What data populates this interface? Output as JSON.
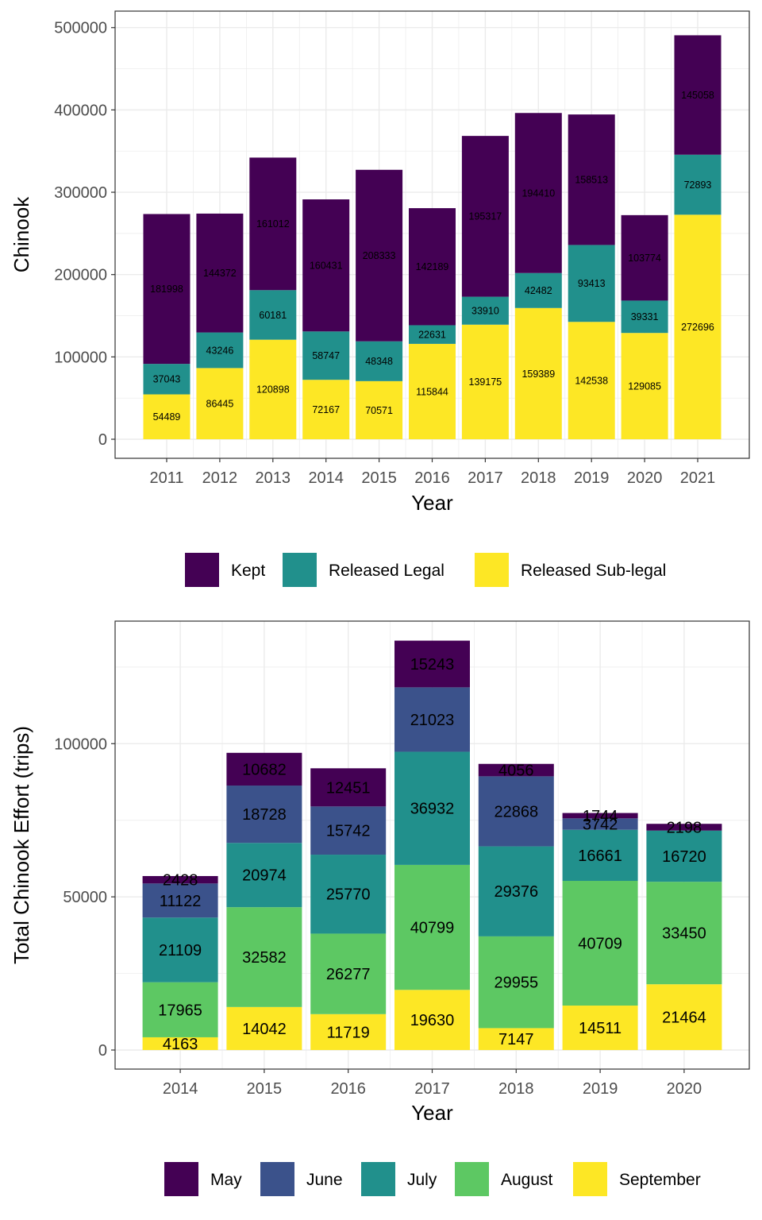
{
  "chart_data": [
    {
      "type": "bar",
      "stacked": true,
      "xlabel": "Year",
      "ylabel": "Chinook",
      "categories": [
        "2011",
        "2012",
        "2013",
        "2014",
        "2015",
        "2016",
        "2017",
        "2018",
        "2019",
        "2020",
        "2021"
      ],
      "ylim": [
        0,
        500000
      ],
      "yticks": [
        0,
        100000,
        200000,
        300000,
        400000,
        500000
      ],
      "grid": true,
      "legend_position": "bottom",
      "series": [
        {
          "name": "Released Sub-legal",
          "color": "#FDE725",
          "values": [
            54489,
            86445,
            120898,
            72167,
            70571,
            115844,
            139175,
            159389,
            142538,
            129085,
            272696
          ]
        },
        {
          "name": "Released Legal",
          "color": "#21908C",
          "values": [
            37043,
            43246,
            60181,
            58747,
            48348,
            22631,
            33910,
            42482,
            93413,
            39331,
            72893
          ]
        },
        {
          "name": "Kept",
          "color": "#440154",
          "values": [
            181998,
            144372,
            161012,
            160431,
            208333,
            142189,
            195317,
            194410,
            158513,
            103774,
            145058
          ]
        }
      ],
      "legend_order": [
        "Kept",
        "Released Legal",
        "Released Sub-legal"
      ]
    },
    {
      "type": "bar",
      "stacked": true,
      "xlabel": "Year",
      "ylabel": "Total Chinook Effort (trips)",
      "categories": [
        "2014",
        "2015",
        "2016",
        "2017",
        "2018",
        "2019",
        "2020"
      ],
      "yticks": [
        0,
        50000,
        100000
      ],
      "grid": true,
      "legend_position": "bottom",
      "series": [
        {
          "name": "September",
          "color": "#FDE725",
          "values": [
            4163,
            14042,
            11719,
            19630,
            7147,
            14511,
            21464
          ]
        },
        {
          "name": "August",
          "color": "#5DC863",
          "values": [
            17965,
            32582,
            26277,
            40799,
            29955,
            40709,
            33450
          ]
        },
        {
          "name": "July",
          "color": "#21908C",
          "values": [
            21109,
            20974,
            25770,
            36932,
            29376,
            16661,
            16720
          ]
        },
        {
          "name": "June",
          "color": "#3B528B",
          "values": [
            11122,
            18728,
            15742,
            21023,
            22868,
            3742,
            null
          ]
        },
        {
          "name": "May",
          "color": "#440154",
          "values": [
            2428,
            10682,
            12451,
            15243,
            4056,
            1744,
            2198
          ]
        }
      ],
      "legend_order": [
        "May",
        "June",
        "July",
        "August",
        "September"
      ]
    }
  ]
}
